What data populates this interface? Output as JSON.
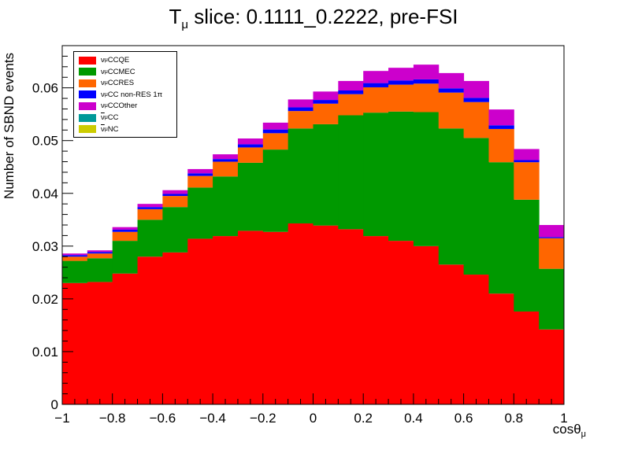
{
  "title": {
    "prefix": "T",
    "sub": "μ",
    "rest": " slice: 0.1111_0.2222, pre-FSI"
  },
  "ylabel": "Number of SBND events",
  "xlabel": {
    "main": "cosθ",
    "sub": "μ"
  },
  "legend": [
    {
      "nu": "ν",
      "sub": "μ",
      "label": "CCQE",
      "anti": false,
      "color": "#ff0000"
    },
    {
      "nu": "ν",
      "sub": "μ",
      "label": "CCMEC",
      "anti": false,
      "color": "#009900"
    },
    {
      "nu": "ν",
      "sub": "μ",
      "label": "CCRES",
      "anti": false,
      "color": "#ff6600"
    },
    {
      "nu": "ν",
      "sub": "μ",
      "label": "CC non-RES 1π",
      "anti": false,
      "color": "#0000ff"
    },
    {
      "nu": "ν",
      "sub": "μ",
      "label": "CCOther",
      "anti": false,
      "color": "#cc00cc"
    },
    {
      "nu": "ν",
      "sub": "μ",
      "label": "CC",
      "anti": true,
      "color": "#009999"
    },
    {
      "nu": "ν",
      "sub": "μ",
      "label": "NC",
      "anti": true,
      "color": "#cccc00"
    }
  ],
  "chart_data": {
    "type": "bar",
    "stacked": true,
    "bin_edges": [
      -1,
      -0.9,
      -0.8,
      -0.7,
      -0.6,
      -0.5,
      -0.4,
      -0.3,
      -0.2,
      -0.1,
      0,
      0.1,
      0.2,
      0.3,
      0.4,
      0.5,
      0.6,
      0.7,
      0.8,
      0.9,
      1
    ],
    "xlim": [
      -1,
      1
    ],
    "ylim": [
      0,
      0.068
    ],
    "x_ticks": [
      "−1",
      "−0.8",
      "−0.6",
      "−0.4",
      "−0.2",
      "0",
      "0.2",
      "0.4",
      "0.6",
      "0.8",
      "1"
    ],
    "x_tick_values": [
      -1,
      -0.8,
      -0.6,
      -0.4,
      -0.2,
      0,
      0.2,
      0.4,
      0.6,
      0.8,
      1
    ],
    "y_ticks": [
      "0",
      "0.01",
      "0.02",
      "0.03",
      "0.04",
      "0.05",
      "0.06"
    ],
    "y_tick_values": [
      0,
      0.01,
      0.02,
      0.03,
      0.04,
      0.05,
      0.06
    ],
    "series": [
      {
        "name": "CCQE",
        "color": "#ff0000",
        "values": [
          0.023,
          0.0232,
          0.0248,
          0.028,
          0.0288,
          0.0314,
          0.0319,
          0.0329,
          0.0327,
          0.0343,
          0.0339,
          0.0332,
          0.0319,
          0.031,
          0.03,
          0.0265,
          0.0246,
          0.021,
          0.0176,
          0.0142
        ]
      },
      {
        "name": "CCMEC",
        "color": "#009900",
        "values": [
          0.0042,
          0.0045,
          0.0062,
          0.007,
          0.0086,
          0.0097,
          0.0113,
          0.0129,
          0.0156,
          0.018,
          0.0192,
          0.0216,
          0.0234,
          0.0245,
          0.0254,
          0.0258,
          0.0259,
          0.0249,
          0.0212,
          0.0115
        ]
      },
      {
        "name": "CCRES",
        "color": "#ff6600",
        "values": [
          0.0008,
          0.0009,
          0.0017,
          0.002,
          0.0021,
          0.0022,
          0.0028,
          0.0029,
          0.0031,
          0.0033,
          0.0039,
          0.004,
          0.0048,
          0.0051,
          0.0054,
          0.0068,
          0.0068,
          0.0063,
          0.0071,
          0.0058
        ]
      },
      {
        "name": "CC non-RES 1π",
        "color": "#0000ff",
        "values": [
          0.0003,
          0.0003,
          0.0004,
          0.0004,
          0.0004,
          0.0005,
          0.0005,
          0.0006,
          0.0007,
          0.0007,
          0.0007,
          0.0007,
          0.0008,
          0.0008,
          0.0008,
          0.0008,
          0.0008,
          0.0007,
          0.0004,
          0.0002
        ]
      },
      {
        "name": "CCOther",
        "color": "#cc00cc",
        "values": [
          0.0003,
          0.0003,
          0.0005,
          0.0006,
          0.0007,
          0.0008,
          0.0009,
          0.0011,
          0.0013,
          0.0015,
          0.0016,
          0.0018,
          0.0023,
          0.0024,
          0.0028,
          0.0029,
          0.0032,
          0.003,
          0.0021,
          0.0023
        ]
      },
      {
        "name": "CC",
        "color": "#009999",
        "values": [
          0,
          0,
          0,
          0,
          0,
          0,
          0,
          0,
          0,
          0,
          0,
          0,
          0,
          0,
          0,
          0,
          0,
          0,
          0,
          0
        ]
      },
      {
        "name": "NC",
        "color": "#cccc00",
        "values": [
          0,
          0,
          0,
          0,
          0,
          0,
          0,
          0,
          0,
          0,
          0,
          0,
          0,
          0,
          0,
          0,
          0,
          0,
          0,
          0
        ]
      }
    ]
  }
}
